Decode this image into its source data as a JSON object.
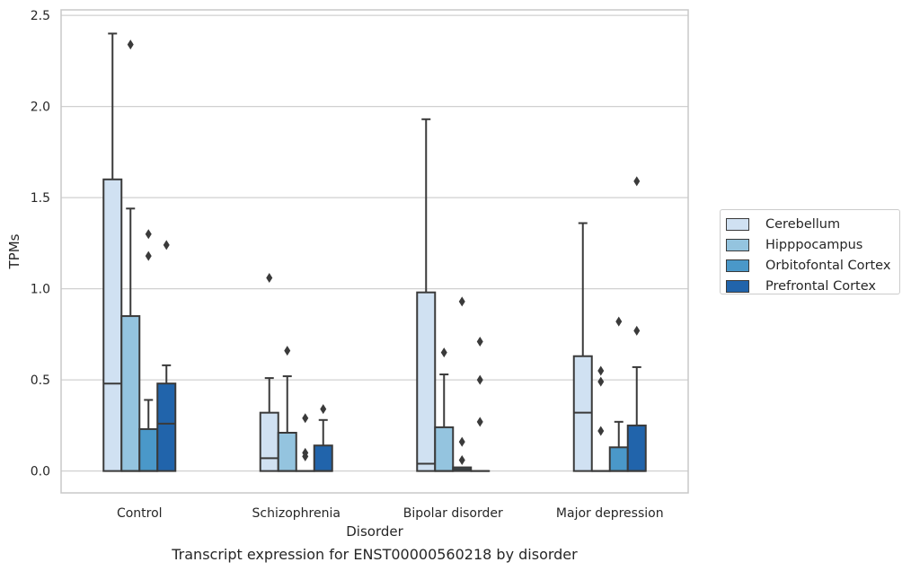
{
  "chart_data": {
    "type": "box",
    "title": "Transcript expression for ENST00000560218 by disorder",
    "xlabel": "Disorder",
    "ylabel": "TPMs",
    "ylim": [
      -0.12,
      2.53
    ],
    "yticks": [
      "0.0",
      "0.5",
      "1.0",
      "1.5",
      "2.0",
      "2.5"
    ],
    "grid": "horizontal",
    "legend_position": "right",
    "categories": [
      "Control",
      "Schizophrenia",
      "Bipolar disorder",
      "Major depression"
    ],
    "series": [
      {
        "name": "Cerebellum",
        "color": "#d0e1f2",
        "boxes": [
          {
            "q1": 0.0,
            "median": 0.48,
            "q3": 1.6,
            "whisker_low": 0.0,
            "whisker_high": 2.4,
            "outliers": []
          },
          {
            "q1": 0.0,
            "median": 0.07,
            "q3": 0.32,
            "whisker_low": 0.0,
            "whisker_high": 0.51,
            "outliers": [
              1.06
            ]
          },
          {
            "q1": 0.0,
            "median": 0.04,
            "q3": 0.98,
            "whisker_low": 0.0,
            "whisker_high": 1.93,
            "outliers": []
          },
          {
            "q1": 0.0,
            "median": 0.32,
            "q3": 0.63,
            "whisker_low": 0.0,
            "whisker_high": 1.36,
            "outliers": []
          }
        ]
      },
      {
        "name": "Hipppocampus",
        "color": "#94c4df",
        "boxes": [
          {
            "q1": 0.0,
            "median": 0.0,
            "q3": 0.85,
            "whisker_low": 0.0,
            "whisker_high": 1.44,
            "outliers": [
              2.34
            ]
          },
          {
            "q1": 0.0,
            "median": 0.0,
            "q3": 0.21,
            "whisker_low": 0.0,
            "whisker_high": 0.52,
            "outliers": [
              0.66
            ]
          },
          {
            "q1": 0.0,
            "median": 0.0,
            "q3": 0.24,
            "whisker_low": 0.0,
            "whisker_high": 0.53,
            "outliers": [
              0.65
            ]
          },
          {
            "q1": 0.0,
            "median": 0.0,
            "q3": 0.0,
            "whisker_low": 0.0,
            "whisker_high": 0.0,
            "outliers": [
              0.55,
              0.49,
              0.22
            ]
          }
        ]
      },
      {
        "name": "Orbitofontal Cortex",
        "color": "#4a98c9",
        "boxes": [
          {
            "q1": 0.0,
            "median": 0.0,
            "q3": 0.23,
            "whisker_low": 0.0,
            "whisker_high": 0.39,
            "outliers": [
              1.3,
              1.18
            ]
          },
          {
            "q1": 0.0,
            "median": 0.0,
            "q3": 0.0,
            "whisker_low": 0.0,
            "whisker_high": 0.0,
            "outliers": [
              0.29,
              0.1,
              0.08
            ]
          },
          {
            "q1": 0.0,
            "median": 0.01,
            "q3": 0.02,
            "whisker_low": 0.0,
            "whisker_high": 0.02,
            "outliers": [
              0.93,
              0.16,
              0.06
            ]
          },
          {
            "q1": 0.0,
            "median": 0.0,
            "q3": 0.13,
            "whisker_low": 0.0,
            "whisker_high": 0.27,
            "outliers": [
              0.82
            ]
          }
        ]
      },
      {
        "name": "Prefrontal Cortex",
        "color": "#2164ab",
        "boxes": [
          {
            "q1": 0.0,
            "median": 0.26,
            "q3": 0.48,
            "whisker_low": 0.0,
            "whisker_high": 0.58,
            "outliers": [
              1.24
            ]
          },
          {
            "q1": 0.0,
            "median": 0.0,
            "q3": 0.14,
            "whisker_low": 0.0,
            "whisker_high": 0.28,
            "outliers": [
              0.34
            ]
          },
          {
            "q1": 0.0,
            "median": 0.0,
            "q3": 0.0,
            "whisker_low": 0.0,
            "whisker_high": 0.0,
            "outliers": [
              0.71,
              0.5,
              0.27
            ]
          },
          {
            "q1": 0.0,
            "median": 0.0,
            "q3": 0.25,
            "whisker_low": 0.0,
            "whisker_high": 0.57,
            "outliers": [
              1.59,
              0.77
            ]
          }
        ]
      }
    ]
  },
  "colors": {
    "grid": "#d0d0d0",
    "frame": "#c8c8c8",
    "box_edge": "#3a3a3a"
  }
}
